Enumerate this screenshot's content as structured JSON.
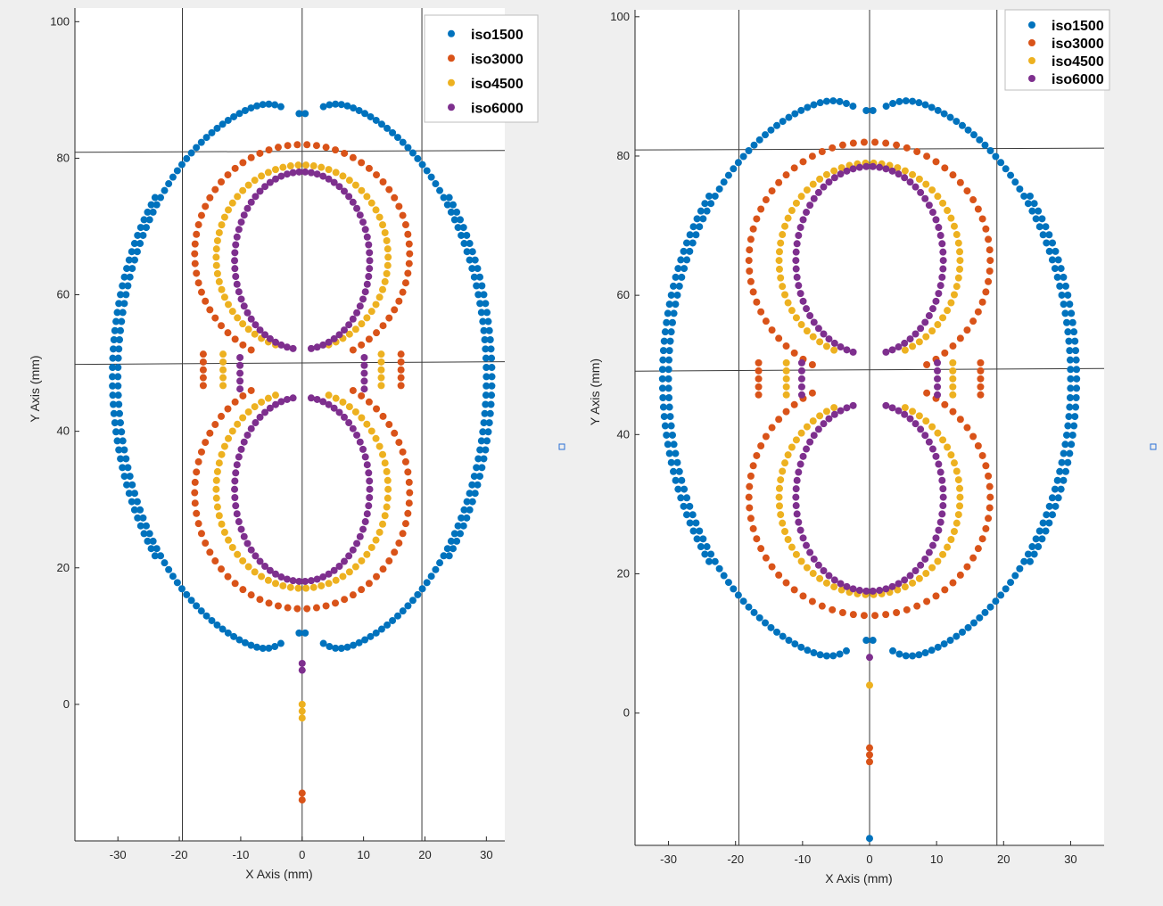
{
  "chart_data": [
    {
      "type": "scatter",
      "title": "",
      "xlabel": "X Axis (mm)",
      "ylabel": "Y Axis (mm)",
      "xlim": [
        -37,
        33
      ],
      "ylim": [
        -20,
        102
      ],
      "xticks": [
        "-30",
        "-20",
        "-10",
        "0",
        "10",
        "20",
        "30"
      ],
      "yticks": [
        "0",
        "20",
        "40",
        "60",
        "80",
        "100"
      ],
      "legend_position": "top-right",
      "reference_lines": {
        "vertical_x": [
          -19.5,
          0,
          19.5
        ],
        "horizontal_y": [
          81,
          50
        ]
      },
      "series": [
        {
          "name": "iso1500",
          "color": "#0072bd",
          "shape": "outer-oval",
          "rx": 30,
          "cy": 48,
          "ry": 41,
          "gap_top_x": 3,
          "gap_bottom_x": 3,
          "stem": []
        },
        {
          "name": "iso3000",
          "color": "#d95319",
          "shape": "figure-eight",
          "rx": 17.5,
          "ry_top": 16,
          "ry_bottom": 17,
          "cy_top": 66,
          "cy_bottom": 31,
          "waist": 15,
          "stem": [
            [
              0,
              -13
            ],
            [
              0,
              -14
            ]
          ]
        },
        {
          "name": "iso4500",
          "color": "#edb120",
          "shape": "figure-eight",
          "rx": 14,
          "ry_top": 13.5,
          "ry_bottom": 14.5,
          "cy_top": 65.5,
          "cy_bottom": 31.5,
          "waist": 8,
          "stem": [
            [
              0,
              0
            ],
            [
              0,
              -1
            ],
            [
              0,
              -2
            ]
          ]
        },
        {
          "name": "iso6000",
          "color": "#7e2f8e",
          "shape": "figure-eight",
          "rx": 11,
          "ry_top": 13,
          "ry_bottom": 13.5,
          "cy_top": 65,
          "cy_bottom": 31.5,
          "waist": 2,
          "stem": [
            [
              0,
              6
            ],
            [
              0,
              5
            ]
          ]
        }
      ]
    },
    {
      "type": "scatter",
      "title": "",
      "xlabel": "X Axis (mm)",
      "ylabel": "Y Axis (mm)",
      "xlim": [
        -35,
        35
      ],
      "ylim": [
        -19,
        101
      ],
      "xticks": [
        "-30",
        "-20",
        "-10",
        "0",
        "10",
        "20",
        "30"
      ],
      "yticks": [
        "0",
        "20",
        "40",
        "60",
        "80",
        "100"
      ],
      "legend_position": "top-right",
      "reference_lines": {
        "vertical_x": [
          -19.5,
          0,
          19
        ],
        "horizontal_y": [
          81,
          49.3
        ]
      },
      "series": [
        {
          "name": "iso1500",
          "color": "#0072bd",
          "shape": "outer-oval",
          "rx": 30,
          "cy": 48,
          "ry": 41,
          "gap_top_x": 2,
          "gap_bottom_x": 3,
          "stem": [
            [
              0,
              -18
            ]
          ]
        },
        {
          "name": "iso3000",
          "color": "#d95319",
          "shape": "figure-eight",
          "rx": 18,
          "ry_top": 17,
          "ry_bottom": 17,
          "cy_top": 65,
          "cy_bottom": 31,
          "waist": 17,
          "stem": [
            [
              0,
              -5
            ],
            [
              0,
              -6
            ],
            [
              0,
              -7
            ]
          ]
        },
        {
          "name": "iso4500",
          "color": "#edb120",
          "shape": "figure-eight",
          "rx": 13.5,
          "ry_top": 14,
          "ry_bottom": 14,
          "cy_top": 65,
          "cy_bottom": 31,
          "waist": 10,
          "stem": [
            [
              0,
              4
            ]
          ]
        },
        {
          "name": "iso6000",
          "color": "#7e2f8e",
          "shape": "figure-eight",
          "rx": 11,
          "ry_top": 13.5,
          "ry_bottom": 13.5,
          "cy_top": 65,
          "cy_bottom": 31,
          "waist": 3,
          "stem": [
            [
              0,
              8
            ]
          ]
        }
      ]
    }
  ]
}
